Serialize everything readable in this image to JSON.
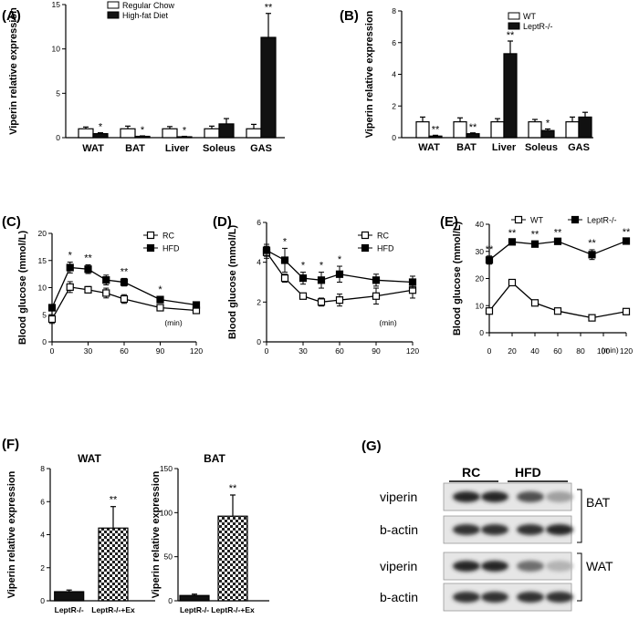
{
  "panels": {
    "A": "(A)",
    "B": "(B)",
    "C": "(C)",
    "D": "(D)",
    "E": "(E)",
    "F": "(F)",
    "G": "(G)"
  },
  "chart_data": [
    {
      "id": "A",
      "type": "bar",
      "ylabel": "Viperin relative expression",
      "ylim": [
        0,
        15
      ],
      "yticks": [
        0,
        5,
        10,
        15
      ],
      "categories": [
        "WAT",
        "BAT",
        "Liver",
        "Soleus",
        "GAS"
      ],
      "series": [
        {
          "name": "Regular Chow",
          "values": [
            1.0,
            1.0,
            1.0,
            1.0,
            1.0
          ],
          "errors": [
            0.2,
            0.3,
            0.25,
            0.3,
            0.5
          ],
          "fill": "#ffffff"
        },
        {
          "name": "High-fat Diet",
          "values": [
            0.45,
            0.15,
            0.1,
            1.55,
            11.3
          ],
          "errors": [
            0.1,
            0.05,
            0.05,
            0.6,
            2.7
          ],
          "fill": "#111111"
        }
      ],
      "annotations": [
        "*",
        "*",
        "*",
        "",
        "**"
      ]
    },
    {
      "id": "B",
      "type": "bar",
      "ylabel": "Viperin relative expression",
      "ylim": [
        0,
        8
      ],
      "yticks": [
        0,
        2,
        4,
        6,
        8
      ],
      "categories": [
        "WAT",
        "BAT",
        "Liver",
        "Soleus",
        "GAS"
      ],
      "series": [
        {
          "name": "WT",
          "values": [
            1.0,
            1.0,
            1.0,
            1.0,
            1.0
          ],
          "errors": [
            0.3,
            0.25,
            0.2,
            0.15,
            0.3
          ],
          "fill": "#ffffff"
        },
        {
          "name": "LeptR-/-",
          "values": [
            0.1,
            0.25,
            5.3,
            0.45,
            1.3
          ],
          "errors": [
            0.05,
            0.05,
            0.8,
            0.1,
            0.3
          ],
          "fill": "#111111"
        }
      ],
      "annotations": [
        "**",
        "**",
        "**",
        "*",
        ""
      ]
    },
    {
      "id": "C",
      "type": "line",
      "ylabel": "Blood glucose (mmol/L)",
      "xunit": "(min)",
      "xlim": [
        0,
        120
      ],
      "ylim": [
        0,
        20
      ],
      "xticks": [
        0,
        30,
        60,
        90,
        120
      ],
      "yticks": [
        0,
        5,
        10,
        15,
        20
      ],
      "x": [
        0,
        15,
        30,
        45,
        60,
        90,
        120
      ],
      "series": [
        {
          "name": "RC",
          "marker": "open-square",
          "values": [
            4.2,
            10.1,
            9.6,
            9.0,
            7.9,
            6.3,
            5.8
          ],
          "errors": [
            0.8,
            1.0,
            0.6,
            0.9,
            0.8,
            0.4,
            0.4
          ]
        },
        {
          "name": "HFD",
          "marker": "filled-square",
          "values": [
            6.3,
            13.7,
            13.4,
            11.4,
            11.0,
            7.8,
            6.8
          ],
          "errors": [
            0.6,
            1.0,
            0.8,
            0.9,
            0.7,
            0.6,
            0.4
          ]
        }
      ],
      "annotations": [
        {
          "x": 15,
          "text": "*"
        },
        {
          "x": 30,
          "text": "**"
        },
        {
          "x": 60,
          "text": "**"
        },
        {
          "x": 90,
          "text": "*"
        }
      ]
    },
    {
      "id": "D",
      "type": "line",
      "ylabel": "Blood glucose (mmol/L)",
      "xunit": "(min)",
      "xlim": [
        0,
        120
      ],
      "ylim": [
        0,
        6
      ],
      "xticks": [
        0,
        30,
        60,
        90,
        120
      ],
      "yticks": [
        0,
        2,
        4,
        6
      ],
      "x": [
        0,
        15,
        30,
        45,
        60,
        90,
        120
      ],
      "series": [
        {
          "name": "RC",
          "marker": "open-square",
          "values": [
            4.5,
            3.2,
            2.3,
            2.0,
            2.1,
            2.3,
            2.6
          ],
          "errors": [
            0.3,
            0.2,
            0.15,
            0.2,
            0.3,
            0.4,
            0.4
          ]
        },
        {
          "name": "HFD",
          "marker": "filled-square",
          "values": [
            4.6,
            4.1,
            3.2,
            3.1,
            3.4,
            3.1,
            3.0
          ],
          "errors": [
            0.3,
            0.6,
            0.3,
            0.4,
            0.4,
            0.3,
            0.3
          ]
        }
      ],
      "annotations": [
        {
          "x": 15,
          "text": "*"
        },
        {
          "x": 30,
          "text": "*"
        },
        {
          "x": 45,
          "text": "*"
        },
        {
          "x": 60,
          "text": "*"
        }
      ]
    },
    {
      "id": "E",
      "type": "line",
      "ylabel": "Blood glucose (mmol/L)",
      "xunit": "(min)",
      "xlim": [
        0,
        120
      ],
      "ylim": [
        0,
        40
      ],
      "xticks": [
        0,
        20,
        40,
        60,
        80,
        100,
        120
      ],
      "yticks": [
        0,
        10,
        20,
        30,
        40
      ],
      "x": [
        0,
        20,
        40,
        60,
        90,
        120
      ],
      "series": [
        {
          "name": "WT",
          "marker": "open-square",
          "values": [
            8.0,
            18.5,
            11.0,
            8.0,
            5.5,
            7.8
          ],
          "errors": [
            1.0,
            1.0,
            0.7,
            0.6,
            0.5,
            0.7
          ]
        },
        {
          "name": "LeptR-/-",
          "marker": "filled-square",
          "values": [
            26.8,
            33.5,
            32.7,
            33.7,
            28.8,
            33.8
          ],
          "errors": [
            1.5,
            0.8,
            1.1,
            0.8,
            1.8,
            0.9
          ]
        }
      ],
      "annotations": [
        {
          "x": 0,
          "text": "**"
        },
        {
          "x": 20,
          "text": "**"
        },
        {
          "x": 40,
          "text": "**"
        },
        {
          "x": 60,
          "text": "**"
        },
        {
          "x": 90,
          "text": "**"
        },
        {
          "x": 120,
          "text": "**"
        }
      ]
    },
    {
      "id": "F1",
      "type": "bar",
      "title": "WAT",
      "ylabel": "Viperin relative expression",
      "ylim": [
        0,
        8
      ],
      "yticks": [
        0,
        2,
        4,
        6,
        8
      ],
      "categories": [
        "LeptR-/-",
        "LeptR-/-+Ex"
      ],
      "values": [
        0.55,
        4.4
      ],
      "errors": [
        0.1,
        1.3
      ],
      "fills": [
        "solid",
        "checker"
      ],
      "annotations": [
        "",
        "**"
      ]
    },
    {
      "id": "F2",
      "type": "bar",
      "title": "BAT",
      "ylabel": "Viperin relative expression",
      "ylim": [
        0,
        150
      ],
      "yticks": [
        0,
        50,
        100,
        150
      ],
      "categories": [
        "LeptR-/-",
        "LeptR-/-+Ex"
      ],
      "values": [
        6,
        96
      ],
      "errors": [
        1.5,
        24
      ],
      "fills": [
        "solid",
        "checker"
      ],
      "annotations": [
        "",
        "**"
      ]
    }
  ],
  "blot": {
    "groups": [
      "RC",
      "HFD"
    ],
    "rows": [
      {
        "label": "viperin",
        "intensity": [
          0.95,
          0.95,
          0.75,
          0.35
        ]
      },
      {
        "label": "b-actin",
        "intensity": [
          0.9,
          0.9,
          0.9,
          0.95
        ]
      },
      {
        "label": "viperin",
        "intensity": [
          0.95,
          0.95,
          0.6,
          0.25
        ]
      },
      {
        "label": "b-actin",
        "intensity": [
          0.9,
          0.9,
          0.9,
          0.9
        ]
      }
    ],
    "tissues": [
      "BAT",
      "WAT"
    ]
  }
}
